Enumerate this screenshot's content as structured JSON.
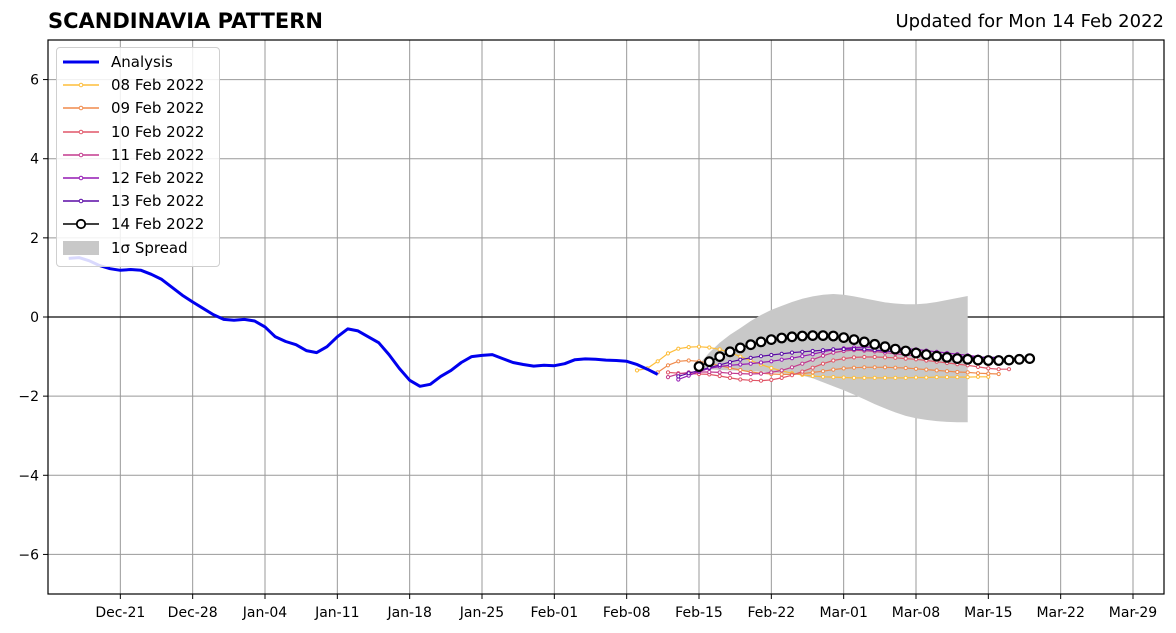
{
  "header": {
    "title": "SCANDINAVIA PATTERN",
    "updated": "Updated for Mon 14 Feb 2022"
  },
  "chart_data": {
    "type": "line",
    "title": "SCANDINAVIA PATTERN",
    "subtitle": "Updated for Mon 14 Feb 2022",
    "xlabel": "",
    "ylabel": "",
    "x_range": [
      "2021-12-14",
      "2022-04-01"
    ],
    "ylim": [
      -7,
      7
    ],
    "grid": true,
    "legend_position": "top-left",
    "x_ticks": [
      "Dec-21",
      "Dec-28",
      "Jan-04",
      "Jan-11",
      "Jan-18",
      "Jan-25",
      "Feb-01",
      "Feb-08",
      "Feb-15",
      "Feb-22",
      "Mar-01",
      "Mar-08",
      "Mar-15",
      "Mar-22",
      "Mar-29"
    ],
    "x_tick_dates": [
      "2021-12-21",
      "2021-12-28",
      "2022-01-04",
      "2022-01-11",
      "2022-01-18",
      "2022-01-25",
      "2022-02-01",
      "2022-02-08",
      "2022-02-15",
      "2022-02-22",
      "2022-03-01",
      "2022-03-08",
      "2022-03-15",
      "2022-03-22",
      "2022-03-29"
    ],
    "y_ticks": [
      {
        "value": 6,
        "label": "6"
      },
      {
        "value": 4,
        "label": "4"
      },
      {
        "value": 2,
        "label": "2"
      },
      {
        "value": 0,
        "label": "0"
      },
      {
        "value": -2,
        "label": "−2"
      },
      {
        "value": -4,
        "label": "−4"
      },
      {
        "value": -6,
        "label": "−6"
      }
    ],
    "analysis": {
      "name": "Analysis",
      "color": "#0000ee",
      "start_date": "2021-12-16",
      "values": [
        1.48,
        1.5,
        1.42,
        1.3,
        1.22,
        1.18,
        1.2,
        1.18,
        1.08,
        0.95,
        0.75,
        0.55,
        0.38,
        0.22,
        0.06,
        -0.06,
        -0.08,
        -0.06,
        -0.1,
        -0.25,
        -0.5,
        -0.62,
        -0.7,
        -0.85,
        -0.9,
        -0.75,
        -0.5,
        -0.3,
        -0.35,
        -0.5,
        -0.65,
        -0.95,
        -1.3,
        -1.6,
        -1.75,
        -1.7,
        -1.5,
        -1.35,
        -1.15,
        -1.0,
        -0.97,
        -0.95,
        -1.05,
        -1.15,
        -1.2,
        -1.24,
        -1.22,
        -1.23,
        -1.18,
        -1.08,
        -1.06,
        -1.07,
        -1.09,
        -1.1,
        -1.12,
        -1.2,
        -1.32,
        -1.45
      ]
    },
    "spread": {
      "name": "1σ Spread",
      "color": "#c8c8c8",
      "start_date": "2022-02-15",
      "upper": [
        -1.2,
        -0.9,
        -0.65,
        -0.45,
        -0.28,
        -0.1,
        0.05,
        0.18,
        0.28,
        0.38,
        0.46,
        0.52,
        0.56,
        0.58,
        0.56,
        0.52,
        0.47,
        0.42,
        0.37,
        0.34,
        0.32,
        0.32,
        0.34,
        0.38,
        0.43,
        0.48,
        0.53
      ],
      "lower": [
        -1.3,
        -1.32,
        -1.34,
        -1.35,
        -1.36,
        -1.37,
        -1.38,
        -1.4,
        -1.42,
        -1.44,
        -1.48,
        -1.55,
        -1.65,
        -1.75,
        -1.85,
        -1.96,
        -2.08,
        -2.2,
        -2.31,
        -2.41,
        -2.5,
        -2.56,
        -2.6,
        -2.63,
        -2.65,
        -2.66,
        -2.66
      ]
    },
    "series": [
      {
        "name": "08 Feb 2022",
        "color": "#fdbd3a",
        "start_date": "2022-02-09",
        "values": [
          -1.35,
          -1.3,
          -1.12,
          -0.92,
          -0.8,
          -0.76,
          -0.75,
          -0.77,
          -0.82,
          -0.9,
          -1.0,
          -1.1,
          -1.2,
          -1.29,
          -1.36,
          -1.42,
          -1.46,
          -1.49,
          -1.51,
          -1.52,
          -1.53,
          -1.54,
          -1.54,
          -1.54,
          -1.54,
          -1.54,
          -1.54,
          -1.53,
          -1.53,
          -1.52,
          -1.52,
          -1.52,
          -1.52,
          -1.51,
          -1.51
        ]
      },
      {
        "name": "09 Feb 2022",
        "color": "#f08a4b",
        "start_date": "2022-02-11",
        "values": [
          -1.4,
          -1.22,
          -1.12,
          -1.1,
          -1.12,
          -1.17,
          -1.23,
          -1.29,
          -1.34,
          -1.39,
          -1.42,
          -1.44,
          -1.45,
          -1.45,
          -1.43,
          -1.4,
          -1.37,
          -1.33,
          -1.3,
          -1.28,
          -1.27,
          -1.27,
          -1.27,
          -1.28,
          -1.29,
          -1.31,
          -1.33,
          -1.35,
          -1.37,
          -1.39,
          -1.4,
          -1.42,
          -1.43,
          -1.44
        ]
      },
      {
        "name": "10 Feb 2022",
        "color": "#e05668",
        "start_date": "2022-02-12",
        "values": [
          -1.4,
          -1.42,
          -1.43,
          -1.44,
          -1.45,
          -1.49,
          -1.54,
          -1.58,
          -1.6,
          -1.61,
          -1.59,
          -1.54,
          -1.47,
          -1.38,
          -1.28,
          -1.18,
          -1.1,
          -1.05,
          -1.02,
          -1.01,
          -1.01,
          -1.02,
          -1.03,
          -1.05,
          -1.07,
          -1.1,
          -1.13,
          -1.16,
          -1.19,
          -1.22,
          -1.26,
          -1.3,
          -1.32,
          -1.32
        ]
      },
      {
        "name": "11 Feb 2022",
        "color": "#c33a8e",
        "start_date": "2022-02-12",
        "values": [
          -1.52,
          -1.44,
          -1.4,
          -1.39,
          -1.39,
          -1.4,
          -1.42,
          -1.43,
          -1.44,
          -1.43,
          -1.4,
          -1.35,
          -1.27,
          -1.18,
          -1.08,
          -0.98,
          -0.9,
          -0.86,
          -0.84,
          -0.85,
          -0.87,
          -0.9,
          -0.93,
          -0.96,
          -0.98,
          -1.0,
          -1.01,
          -1.02,
          -1.03,
          -1.03
        ]
      },
      {
        "name": "12 Feb 2022",
        "color": "#9419b4",
        "start_date": "2022-02-13",
        "values": [
          -1.58,
          -1.48,
          -1.38,
          -1.3,
          -1.25,
          -1.22,
          -1.2,
          -1.18,
          -1.15,
          -1.12,
          -1.08,
          -1.04,
          -0.99,
          -0.94,
          -0.88,
          -0.83,
          -0.79,
          -0.77,
          -0.76,
          -0.76,
          -0.77,
          -0.78,
          -0.8,
          -0.82,
          -0.85,
          -0.88,
          -0.91,
          -0.94,
          -0.97,
          -1.0,
          -1.03,
          -1.05
        ]
      },
      {
        "name": "13 Feb 2022",
        "color": "#5a0aa5",
        "start_date": "2022-02-13",
        "values": [
          -1.5,
          -1.42,
          -1.35,
          -1.28,
          -1.21,
          -1.14,
          -1.08,
          -1.03,
          -0.99,
          -0.96,
          -0.93,
          -0.9,
          -0.88,
          -0.86,
          -0.84,
          -0.82,
          -0.81,
          -0.81,
          -0.82,
          -0.84,
          -0.86,
          -0.88,
          -0.9,
          -0.92,
          -0.94,
          -0.96,
          -0.98,
          -1.0,
          -1.01,
          -1.02,
          -1.02,
          -1.02
        ]
      },
      {
        "name": "14 Feb 2022",
        "color": "#000000",
        "start_date": "2022-02-15",
        "values": [
          -1.25,
          -1.13,
          -1.0,
          -0.88,
          -0.78,
          -0.7,
          -0.63,
          -0.57,
          -0.53,
          -0.5,
          -0.48,
          -0.47,
          -0.47,
          -0.48,
          -0.52,
          -0.57,
          -0.63,
          -0.69,
          -0.75,
          -0.81,
          -0.86,
          -0.91,
          -0.95,
          -0.99,
          -1.02,
          -1.05,
          -1.07,
          -1.09,
          -1.1,
          -1.1,
          -1.09,
          -1.07,
          -1.05
        ]
      }
    ]
  },
  "legend": {
    "entries": [
      {
        "label": "Analysis",
        "color": "#0000ee",
        "kind": "thick-line"
      },
      {
        "label": "08 Feb 2022",
        "color": "#fdbd3a",
        "kind": "dotted-line"
      },
      {
        "label": "09 Feb 2022",
        "color": "#f08a4b",
        "kind": "dotted-line"
      },
      {
        "label": "10 Feb 2022",
        "color": "#e05668",
        "kind": "dotted-line"
      },
      {
        "label": "11 Feb 2022",
        "color": "#c33a8e",
        "kind": "dotted-line"
      },
      {
        "label": "12 Feb 2022",
        "color": "#9419b4",
        "kind": "dotted-line"
      },
      {
        "label": "13 Feb 2022",
        "color": "#5a0aa5",
        "kind": "dotted-line"
      },
      {
        "label": "14 Feb 2022",
        "color": "#000000",
        "kind": "circle-line"
      },
      {
        "label": "1σ Spread",
        "color": "#c8c8c8",
        "kind": "patch"
      }
    ]
  }
}
